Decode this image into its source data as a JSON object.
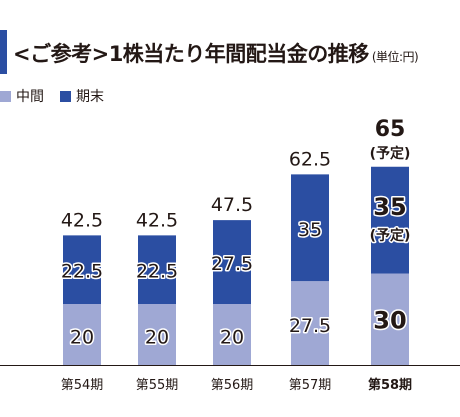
{
  "title": "<ご参考>1株当たり年間配当金の推移",
  "unit": "(単位:円)",
  "colors": {
    "interim": "#9fa8d4",
    "final": "#2b4ea2",
    "final_planned": "#2b4ea2"
  },
  "chart_data": {
    "type": "bar",
    "stacked": true,
    "categories": [
      "第54期",
      "第55期",
      "第56期",
      "第57期",
      "第58期"
    ],
    "series": [
      {
        "name": "中間",
        "values": [
          20,
          20,
          20,
          27.5,
          30
        ]
      },
      {
        "name": "期末",
        "values": [
          22.5,
          22.5,
          27.5,
          35,
          35
        ]
      }
    ],
    "totals": [
      42.5,
      42.5,
      47.5,
      62.5,
      65
    ],
    "value_labels": {
      "interim": [
        "20",
        "20",
        "20",
        "27.5",
        "30"
      ],
      "final": [
        "22.5",
        "22.5",
        "27.5",
        "35",
        "35"
      ],
      "total": [
        "42.5",
        "42.5",
        "47.5",
        "62.5",
        "65"
      ]
    },
    "planned_note": "(予定)",
    "planned_index": 4,
    "highlight_index": 4,
    "ylim": [
      0,
      70
    ],
    "grid": false,
    "legend_position": "top-left"
  }
}
